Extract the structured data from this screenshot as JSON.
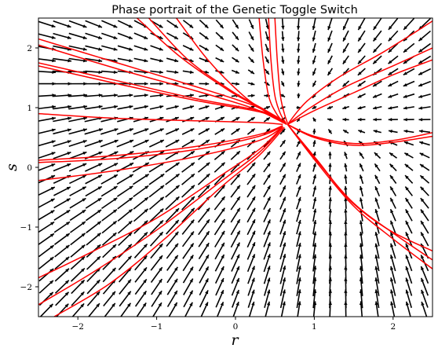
{
  "chart_data": {
    "type": "quiver",
    "title": "Phase portrait of the Genetic Toggle Switch",
    "xlabel": "r",
    "ylabel": "s",
    "xlim": [
      -2.5,
      2.5
    ],
    "ylim": [
      -2.5,
      2.5
    ],
    "xticks": [
      -2,
      -1,
      0,
      1,
      2
    ],
    "yticks": [
      -2,
      -1,
      0,
      1,
      2
    ],
    "grid": false,
    "vector_field": {
      "grid_count": 25,
      "arrow_color": "#000000",
      "fixed_point_approx": [
        0.65,
        0.72
      ]
    },
    "trajectory_color": "#ff0000",
    "trajectories": [
      {
        "x": [
          -2.5,
          -1.5,
          -0.5,
          0.2,
          0.5,
          0.65
        ],
        "y": [
          2.15,
          1.75,
          1.35,
          1.05,
          0.85,
          0.72
        ]
      },
      {
        "x": [
          -2.5,
          -1.5,
          -0.5,
          0.2,
          0.5,
          0.65
        ],
        "y": [
          2.05,
          1.65,
          1.28,
          1.0,
          0.82,
          0.72
        ]
      },
      {
        "x": [
          -2.5,
          -1.5,
          -0.5,
          0.3,
          0.55,
          0.65
        ],
        "y": [
          1.75,
          1.45,
          1.15,
          0.95,
          0.8,
          0.72
        ]
      },
      {
        "x": [
          -2.5,
          -1.5,
          -0.5,
          0.3,
          0.55,
          0.65
        ],
        "y": [
          1.7,
          1.4,
          1.12,
          0.93,
          0.79,
          0.72
        ]
      },
      {
        "x": [
          -2.5,
          -1.5,
          -0.5,
          0.3,
          0.6
        ],
        "y": [
          0.9,
          0.82,
          0.78,
          0.75,
          0.72
        ]
      },
      {
        "x": [
          -2.5,
          -1.5,
          -0.5,
          0.3,
          0.6
        ],
        "y": [
          0.12,
          0.2,
          0.35,
          0.55,
          0.7
        ]
      },
      {
        "x": [
          -2.5,
          -1.5,
          -0.5,
          0.3,
          0.6
        ],
        "y": [
          0.08,
          0.15,
          0.3,
          0.52,
          0.69
        ]
      },
      {
        "x": [
          -2.5,
          -1.5,
          -0.5,
          0.3,
          0.6
        ],
        "y": [
          -0.22,
          -0.05,
          0.18,
          0.45,
          0.68
        ]
      },
      {
        "x": [
          -2.5,
          -1.8,
          -1.0,
          -0.2,
          0.3,
          0.6
        ],
        "y": [
          -1.85,
          -1.4,
          -0.85,
          -0.15,
          0.3,
          0.68
        ]
      },
      {
        "x": [
          -2.5,
          -1.8,
          -1.0,
          -0.2,
          0.3,
          0.6
        ],
        "y": [
          -2.3,
          -1.75,
          -1.05,
          -0.25,
          0.25,
          0.67
        ]
      },
      {
        "x": [
          -2.3,
          -1.6,
          -0.9,
          -0.2,
          0.3,
          0.62
        ],
        "y": [
          -2.5,
          -1.95,
          -1.2,
          -0.35,
          0.2,
          0.67
        ]
      },
      {
        "x": [
          -1.25,
          -0.7,
          -0.1,
          0.3,
          0.55,
          0.65
        ],
        "y": [
          2.5,
          1.85,
          1.3,
          1.0,
          0.8,
          0.72
        ]
      },
      {
        "x": [
          -1.1,
          -0.6,
          -0.05,
          0.35,
          0.58,
          0.65
        ],
        "y": [
          2.5,
          1.8,
          1.28,
          0.98,
          0.8,
          0.72
        ]
      },
      {
        "x": [
          -0.75,
          -0.35,
          0.1,
          0.4,
          0.6
        ],
        "y": [
          2.5,
          1.8,
          1.2,
          0.92,
          0.75
        ]
      },
      {
        "x": [
          0.3,
          0.35,
          0.42,
          0.52,
          0.62
        ],
        "y": [
          2.5,
          1.8,
          1.2,
          0.9,
          0.74
        ]
      },
      {
        "x": [
          0.42,
          0.45,
          0.5,
          0.57,
          0.64
        ],
        "y": [
          2.5,
          1.8,
          1.2,
          0.9,
          0.74
        ]
      },
      {
        "x": [
          0.5,
          0.53,
          0.57,
          0.62,
          0.66
        ],
        "y": [
          2.5,
          1.8,
          1.2,
          0.9,
          0.74
        ]
      },
      {
        "x": [
          0.66,
          0.9,
          1.3,
          1.9,
          2.5
        ],
        "y": [
          0.72,
          1.1,
          1.5,
          1.95,
          2.45
        ]
      },
      {
        "x": [
          0.66,
          0.95,
          1.4,
          2.0,
          2.5
        ],
        "y": [
          0.72,
          1.0,
          1.35,
          1.7,
          2.0
        ]
      },
      {
        "x": [
          0.66,
          1.0,
          1.5,
          2.0,
          2.5
        ],
        "y": [
          0.72,
          0.95,
          1.25,
          1.55,
          1.8
        ]
      },
      {
        "x": [
          0.66,
          1.0,
          1.5,
          2.0,
          2.5
        ],
        "y": [
          0.72,
          0.52,
          0.4,
          0.45,
          0.58
        ]
      },
      {
        "x": [
          0.66,
          1.0,
          1.5,
          2.0,
          2.5
        ],
        "y": [
          0.72,
          0.5,
          0.37,
          0.42,
          0.52
        ]
      },
      {
        "x": [
          0.66,
          1.05,
          1.45,
          1.95,
          2.5
        ],
        "y": [
          0.72,
          0.1,
          -0.55,
          -1.05,
          -1.4
        ]
      },
      {
        "x": [
          0.66,
          1.05,
          1.5,
          2.0,
          2.5
        ],
        "y": [
          0.72,
          0.05,
          -0.65,
          -1.2,
          -1.7
        ]
      },
      {
        "x": [
          0.66,
          1.05,
          1.5,
          2.0,
          2.5
        ],
        "y": [
          0.72,
          0.08,
          -0.6,
          -1.1,
          -1.55
        ]
      }
    ]
  }
}
